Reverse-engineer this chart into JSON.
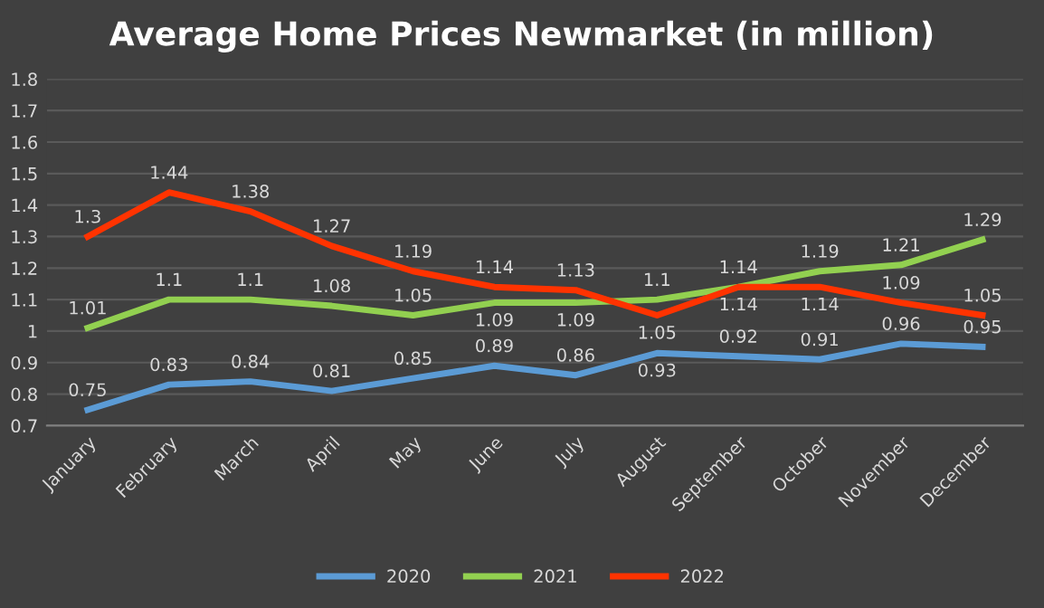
{
  "chart_data": {
    "type": "line",
    "title": "Average Home Prices Newmarket (in million)",
    "categories": [
      "January",
      "February",
      "March",
      "April",
      "May",
      "June",
      "July",
      "August",
      "September",
      "October",
      "November",
      "December"
    ],
    "series": [
      {
        "name": "2020",
        "color": "#5b9bd5",
        "values": [
          0.75,
          0.83,
          0.84,
          0.81,
          0.85,
          0.89,
          0.86,
          0.93,
          0.92,
          0.91,
          0.96,
          0.95
        ]
      },
      {
        "name": "2021",
        "color": "#92d050",
        "values": [
          1.01,
          1.1,
          1.1,
          1.08,
          1.05,
          1.09,
          1.09,
          1.1,
          1.14,
          1.19,
          1.21,
          1.29
        ]
      },
      {
        "name": "2022",
        "color": "#ff3300",
        "values": [
          1.3,
          1.44,
          1.38,
          1.27,
          1.19,
          1.14,
          1.13,
          1.05,
          1.14,
          1.14,
          1.09,
          1.05
        ]
      }
    ],
    "ylim": [
      0.7,
      1.8
    ],
    "yticks": [
      0.7,
      0.8,
      0.9,
      1,
      1.1,
      1.2,
      1.3,
      1.4,
      1.5,
      1.6,
      1.7,
      1.8
    ],
    "grid": "y",
    "legend": "bottom",
    "data_labels": true,
    "marker": "none",
    "line_style": "solid"
  }
}
